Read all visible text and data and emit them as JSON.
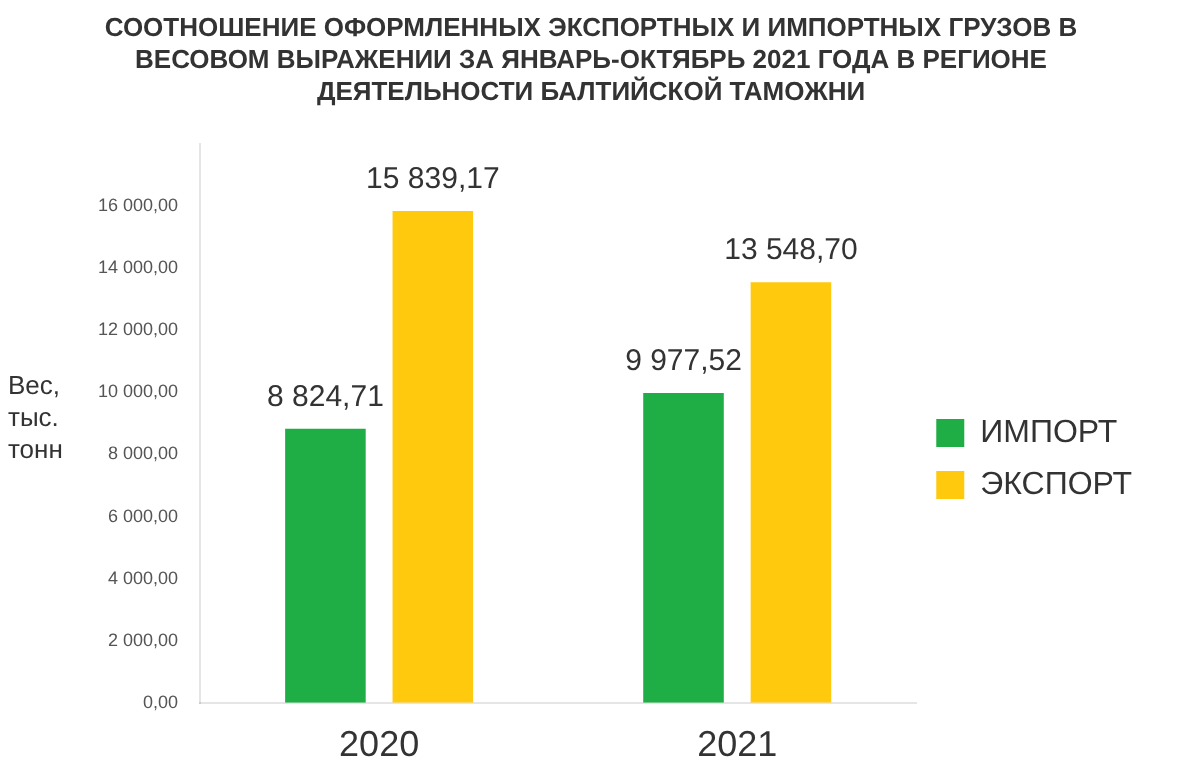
{
  "chart_data": {
    "type": "bar",
    "title": "СООТНОШЕНИЕ ОФОРМЛЕННЫХ ЭКСПОРТНЫХ И ИМПОРТНЫХ ГРУЗОВ В ВЕСОВОМ ВЫРАЖЕНИИ ЗА ЯНВАРЬ-ОКТЯБРЬ 2021 ГОДА В РЕГИОНЕ ДЕЯТЕЛЬНОСТИ БАЛТИЙСКОЙ ТАМОЖНИ",
    "ylabel": "Вес, тыс. тонн",
    "categories": [
      "2020",
      "2021"
    ],
    "series": [
      {
        "name": "ИМПОРТ",
        "color": "#1fad45",
        "values": [
          8824.71,
          9977.52
        ],
        "value_labels": [
          "8 824,71",
          "9 977,52"
        ]
      },
      {
        "name": "ЭКСПОРТ",
        "color": "#ffc90e",
        "values": [
          15839.17,
          13548.7
        ],
        "value_labels": [
          "15 839,17",
          "13 548,70"
        ]
      }
    ],
    "ylim": [
      0,
      18000
    ],
    "yticks": [
      {
        "value": 0,
        "label": "0,00"
      },
      {
        "value": 2000,
        "label": "2 000,00"
      },
      {
        "value": 4000,
        "label": "4 000,00"
      },
      {
        "value": 6000,
        "label": "6 000,00"
      },
      {
        "value": 8000,
        "label": "8 000,00"
      },
      {
        "value": 10000,
        "label": "10 000,00"
      },
      {
        "value": 12000,
        "label": "12 000,00"
      },
      {
        "value": 14000,
        "label": "14 000,00"
      },
      {
        "value": 16000,
        "label": "16 000,00"
      }
    ],
    "grid": false,
    "legend": "right"
  }
}
